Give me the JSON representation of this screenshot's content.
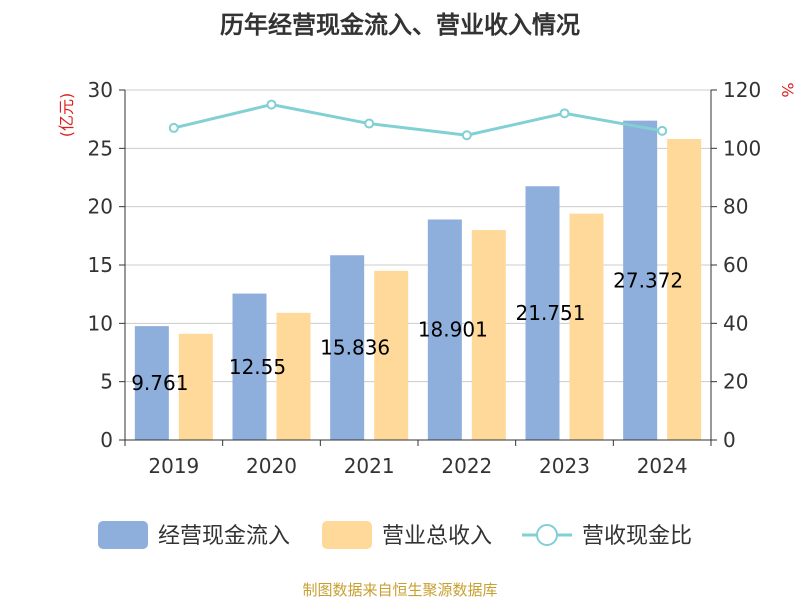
{
  "chart_data": {
    "type": "bar",
    "title": "历年经营现金流入、营业收入情况",
    "categories": [
      "2019",
      "2020",
      "2021",
      "2022",
      "2023",
      "2024"
    ],
    "series": [
      {
        "name": "经营现金流入",
        "type": "bar",
        "axis": "left",
        "color": "#8eaedb",
        "values": [
          9.761,
          12.55,
          15.836,
          18.901,
          21.751,
          27.372
        ]
      },
      {
        "name": "营业总收入",
        "type": "bar",
        "axis": "left",
        "color": "#ffd999",
        "values": [
          9.1,
          10.9,
          14.5,
          18.0,
          19.4,
          25.8
        ]
      },
      {
        "name": "营收现金比",
        "type": "line",
        "axis": "right",
        "color": "#80d0d4",
        "values": [
          107.0,
          115.0,
          108.5,
          104.5,
          112.0,
          106.0
        ]
      }
    ],
    "data_labels": [
      "9.761",
      "12.55",
      "15.836",
      "18.901",
      "21.751",
      "27.372"
    ],
    "y_left": {
      "label": "(亿元)",
      "min": 0,
      "max": 30,
      "ticks": [
        0,
        5,
        10,
        15,
        20,
        25,
        30
      ]
    },
    "y_right": {
      "label": "%",
      "min": 0,
      "max": 120,
      "ticks": [
        0,
        20,
        40,
        60,
        80,
        100,
        120
      ]
    },
    "grid": true,
    "legend_position": "bottom"
  },
  "source_text": "制图数据来自恒生聚源数据库"
}
